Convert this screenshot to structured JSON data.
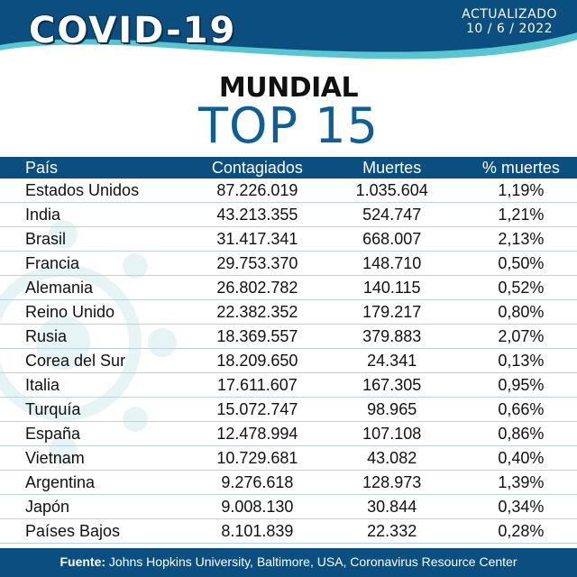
{
  "header": {
    "logo": "COVID-19",
    "updated_label": "ACTUALIZADO",
    "updated_date": "10 / 6 / 2022"
  },
  "scope": "MUNDIAL",
  "headline": "TOP 15",
  "colors": {
    "navy": "#0b4f80",
    "accent": "#0e5f95",
    "teal": "#59c5d0"
  },
  "table": {
    "columns": [
      "País",
      "Contagiados",
      "Muertes",
      "% muertes"
    ],
    "rows": [
      [
        "Estados Unidos",
        "87.226.019",
        "1.035.604",
        "1,19%"
      ],
      [
        "India",
        "43.213.355",
        "524.747",
        "1,21%"
      ],
      [
        "Brasil",
        "31.417.341",
        "668.007",
        "2,13%"
      ],
      [
        "Francia",
        "29.753.370",
        "148.710",
        "0,50%"
      ],
      [
        "Alemania",
        "26.802.782",
        "140.115",
        "0,52%"
      ],
      [
        "Reino Unido",
        "22.382.352",
        "179.217",
        "0,80%"
      ],
      [
        "Rusia",
        "18.369.557",
        "379.883",
        "2,07%"
      ],
      [
        "Corea del Sur",
        "18.209.650",
        "24.341",
        "0,13%"
      ],
      [
        "Italia",
        "17.611.607",
        "167.305",
        "0,95%"
      ],
      [
        "Turquía",
        "15.072.747",
        "98.965",
        "0,66%"
      ],
      [
        "España",
        "12.478.994",
        "107.108",
        "0,86%"
      ],
      [
        "Vietnam",
        "10.729.681",
        "43.082",
        "0,40%"
      ],
      [
        "Argentina",
        "9.276.618",
        "128.973",
        "1,39%"
      ],
      [
        "Japón",
        "9.008.130",
        "30.844",
        "0,34%"
      ],
      [
        "Países Bajos",
        "8.101.839",
        "22.332",
        "0,28%"
      ]
    ]
  },
  "footer": {
    "label": "Fuente:",
    "text": " Johns Hopkins University, Baltimore, USA, Coronavirus Resource Center"
  }
}
